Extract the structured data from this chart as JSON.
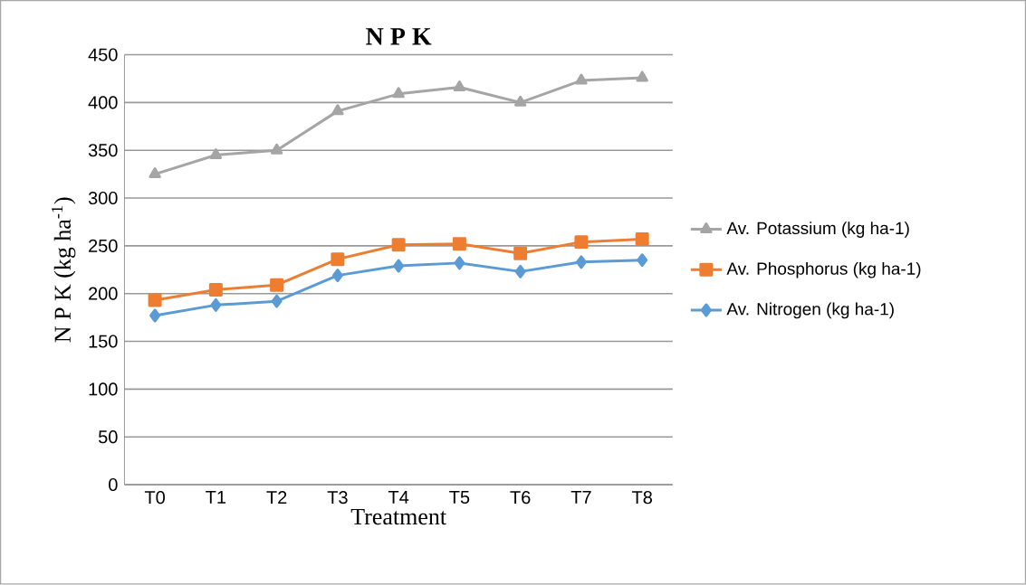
{
  "chart_data": {
    "type": "line",
    "title": "N P K",
    "xlabel": "Treatment",
    "ylabel": "N P K (kg ha$^{-1}$)",
    "categories": [
      "T0",
      "T1",
      "T2",
      "T3",
      "T4",
      "T5",
      "T6",
      "T7",
      "T8"
    ],
    "series": [
      {
        "name": "Av. Potassium (kg ha-1)",
        "color": "#a5a5a5",
        "marker": "triangle",
        "values": [
          325,
          345,
          350,
          391,
          409,
          416,
          400,
          423,
          426
        ]
      },
      {
        "name": "Av. Phosphorus (kg ha-1)",
        "color": "#ed7d31",
        "marker": "square",
        "values": [
          193,
          204,
          209,
          236,
          251,
          252,
          242,
          254,
          257
        ]
      },
      {
        "name": "Av. Nitrogen (kg ha-1)",
        "color": "#5b9bd5",
        "marker": "diamond",
        "values": [
          177,
          188,
          192,
          219,
          229,
          232,
          223,
          233,
          235
        ]
      }
    ],
    "ylim": [
      0,
      450
    ],
    "yticks": [
      0,
      50,
      100,
      150,
      200,
      250,
      300,
      350,
      400,
      450
    ],
    "grid": "y",
    "legend": "right",
    "line_style": "solid"
  }
}
